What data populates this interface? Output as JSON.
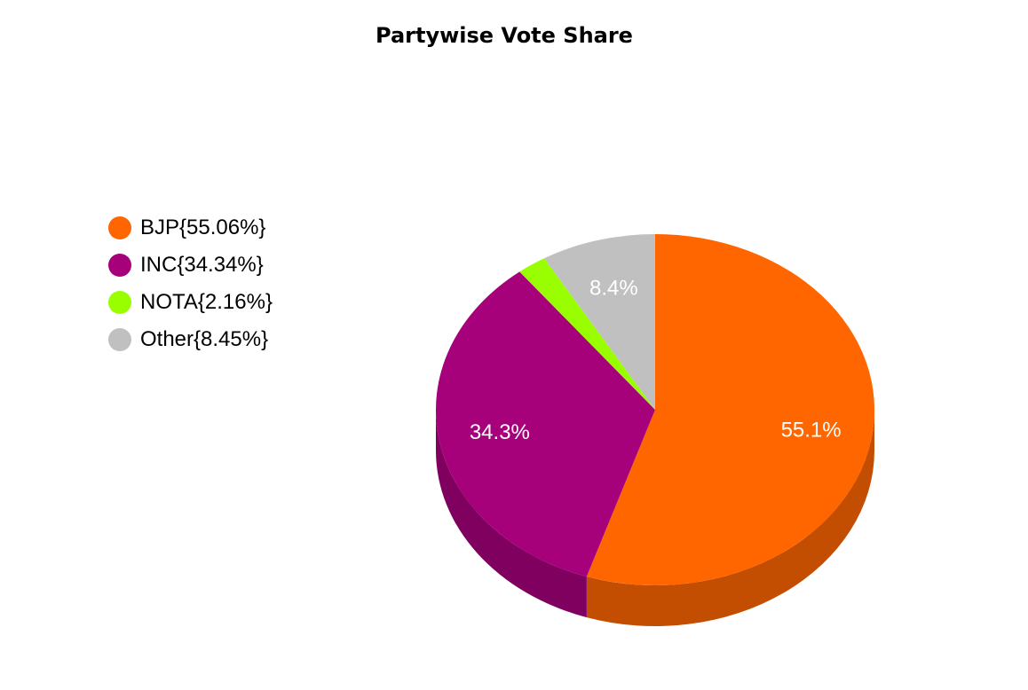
{
  "chart_data": {
    "type": "pie",
    "title": "Partywise Vote Share",
    "legend_position": "left",
    "start_angle_deg": -90,
    "direction": "clockwise",
    "slices": [
      {
        "name": "BJP",
        "value": 55.06,
        "legend": "BJP{55.06%}",
        "label": "55.1%",
        "color": "#ff6600",
        "side_color": "#c34d00"
      },
      {
        "name": "INC",
        "value": 34.34,
        "legend": "INC{34.34%}",
        "label": "34.3%",
        "color": "#a6007a",
        "side_color": "#800060"
      },
      {
        "name": "NOTA",
        "value": 2.16,
        "legend": "NOTA{2.16%}",
        "label": "",
        "color": "#99ff00",
        "side_color": "#77c400"
      },
      {
        "name": "Other",
        "value": 8.45,
        "legend": "Other{8.45%}",
        "label": "8.4%",
        "color": "#c0c0c0",
        "side_color": "#949494"
      }
    ]
  }
}
